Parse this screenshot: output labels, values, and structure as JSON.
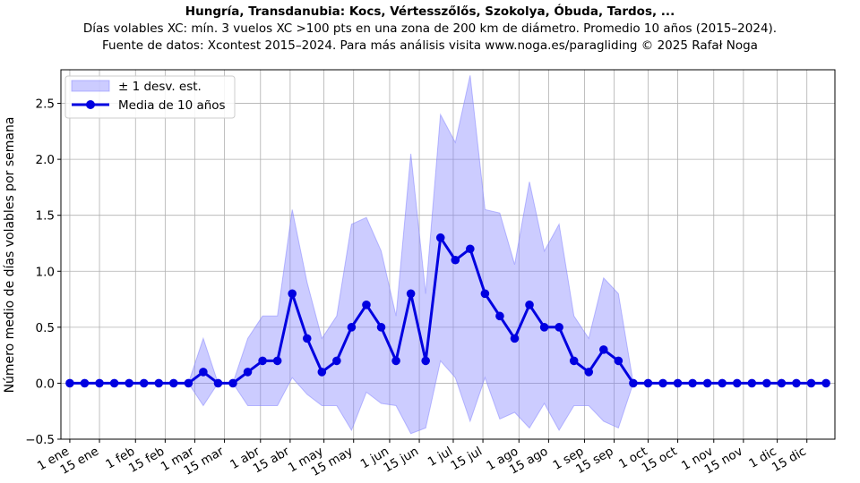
{
  "chart_data": {
    "type": "line",
    "title": "Hungría, Transdanubia: Kocs, Vértesszőlős, Szokolya, Óbuda, Tardos, ...",
    "subtitle": "Días volables XC: mín. 3 vuelos XC >100 pts en una zona de 200 km de diámetro. Promedio 10 años (2015–2024).",
    "source": "Fuente de datos: Xcontest 2015–2024. Para más análisis visita www.noga.es/paragliding © 2025 Rafał Noga",
    "xlabel": "",
    "ylabel": "Número medio de días volables por semana",
    "ylim": [
      -0.5,
      2.8
    ],
    "yticks": [
      -0.5,
      0.0,
      0.5,
      1.0,
      1.5,
      2.0,
      2.5
    ],
    "ytick_labels": [
      "−0.5",
      "0.0",
      "0.5",
      "1.0",
      "1.5",
      "2.0",
      "2.5"
    ],
    "xtick_labels": [
      "1 ene",
      "15 ene",
      "1 feb",
      "15 feb",
      "1 mar",
      "15 mar",
      "1 abr",
      "15 abr",
      "1 may",
      "15 may",
      "1 jun",
      "15 jun",
      "1 jul",
      "15 jul",
      "1 ago",
      "15 ago",
      "1 sep",
      "15 sep",
      "1 oct",
      "15 oct",
      "1 nov",
      "15 nov",
      "1 dic",
      "15 dic"
    ],
    "xtick_weeks": [
      0,
      2,
      4.43,
      6.43,
      8.43,
      10.43,
      12.86,
      14.86,
      17.14,
      19.14,
      21.57,
      23.57,
      25.86,
      27.86,
      30.29,
      32.29,
      34.71,
      36.71,
      39,
      41,
      43.43,
      45.43,
      47.71,
      49.71
    ],
    "grid": true,
    "legend_position": "top-left",
    "series": [
      {
        "name": "Media de 10 años",
        "color": "#0000e0",
        "values": [
          0,
          0,
          0,
          0,
          0,
          0,
          0,
          0,
          0,
          0.1,
          0,
          0,
          0.1,
          0.2,
          0.2,
          0.8,
          0.4,
          0.1,
          0.2,
          0.5,
          0.7,
          0.5,
          0.2,
          0.8,
          0.2,
          1.3,
          1.1,
          1.2,
          0.8,
          0.6,
          0.4,
          0.7,
          0.5,
          0.5,
          0.2,
          0.1,
          0.3,
          0.2,
          0,
          0,
          0,
          0,
          0,
          0,
          0,
          0,
          0,
          0,
          0,
          0,
          0,
          0
        ]
      }
    ],
    "band": {
      "name": "± 1 desv. est.",
      "color": "#8080ff",
      "upper": [
        0,
        0,
        0,
        0,
        0,
        0,
        0,
        0,
        0,
        0.4,
        0,
        0,
        0.4,
        0.6,
        0.6,
        1.55,
        0.9,
        0.4,
        0.6,
        1.42,
        1.48,
        1.18,
        0.6,
        2.05,
        0.8,
        2.4,
        2.15,
        2.75,
        1.55,
        1.52,
        1.06,
        1.8,
        1.18,
        1.42,
        0.6,
        0.4,
        0.94,
        0.8,
        0,
        0,
        0,
        0,
        0,
        0,
        0,
        0,
        0,
        0,
        0,
        0,
        0,
        0
      ],
      "lower": [
        0,
        0,
        0,
        0,
        0,
        0,
        0,
        0,
        0,
        -0.2,
        0,
        0,
        -0.2,
        -0.2,
        -0.2,
        0.05,
        -0.1,
        -0.2,
        -0.2,
        -0.42,
        -0.08,
        -0.18,
        -0.2,
        -0.45,
        -0.4,
        0.2,
        0.05,
        -0.34,
        0.05,
        -0.32,
        -0.26,
        -0.4,
        -0.18,
        -0.42,
        -0.2,
        -0.2,
        -0.34,
        -0.4,
        0,
        0,
        0,
        0,
        0,
        0,
        0,
        0,
        0,
        0,
        0,
        0,
        0,
        0
      ]
    }
  }
}
